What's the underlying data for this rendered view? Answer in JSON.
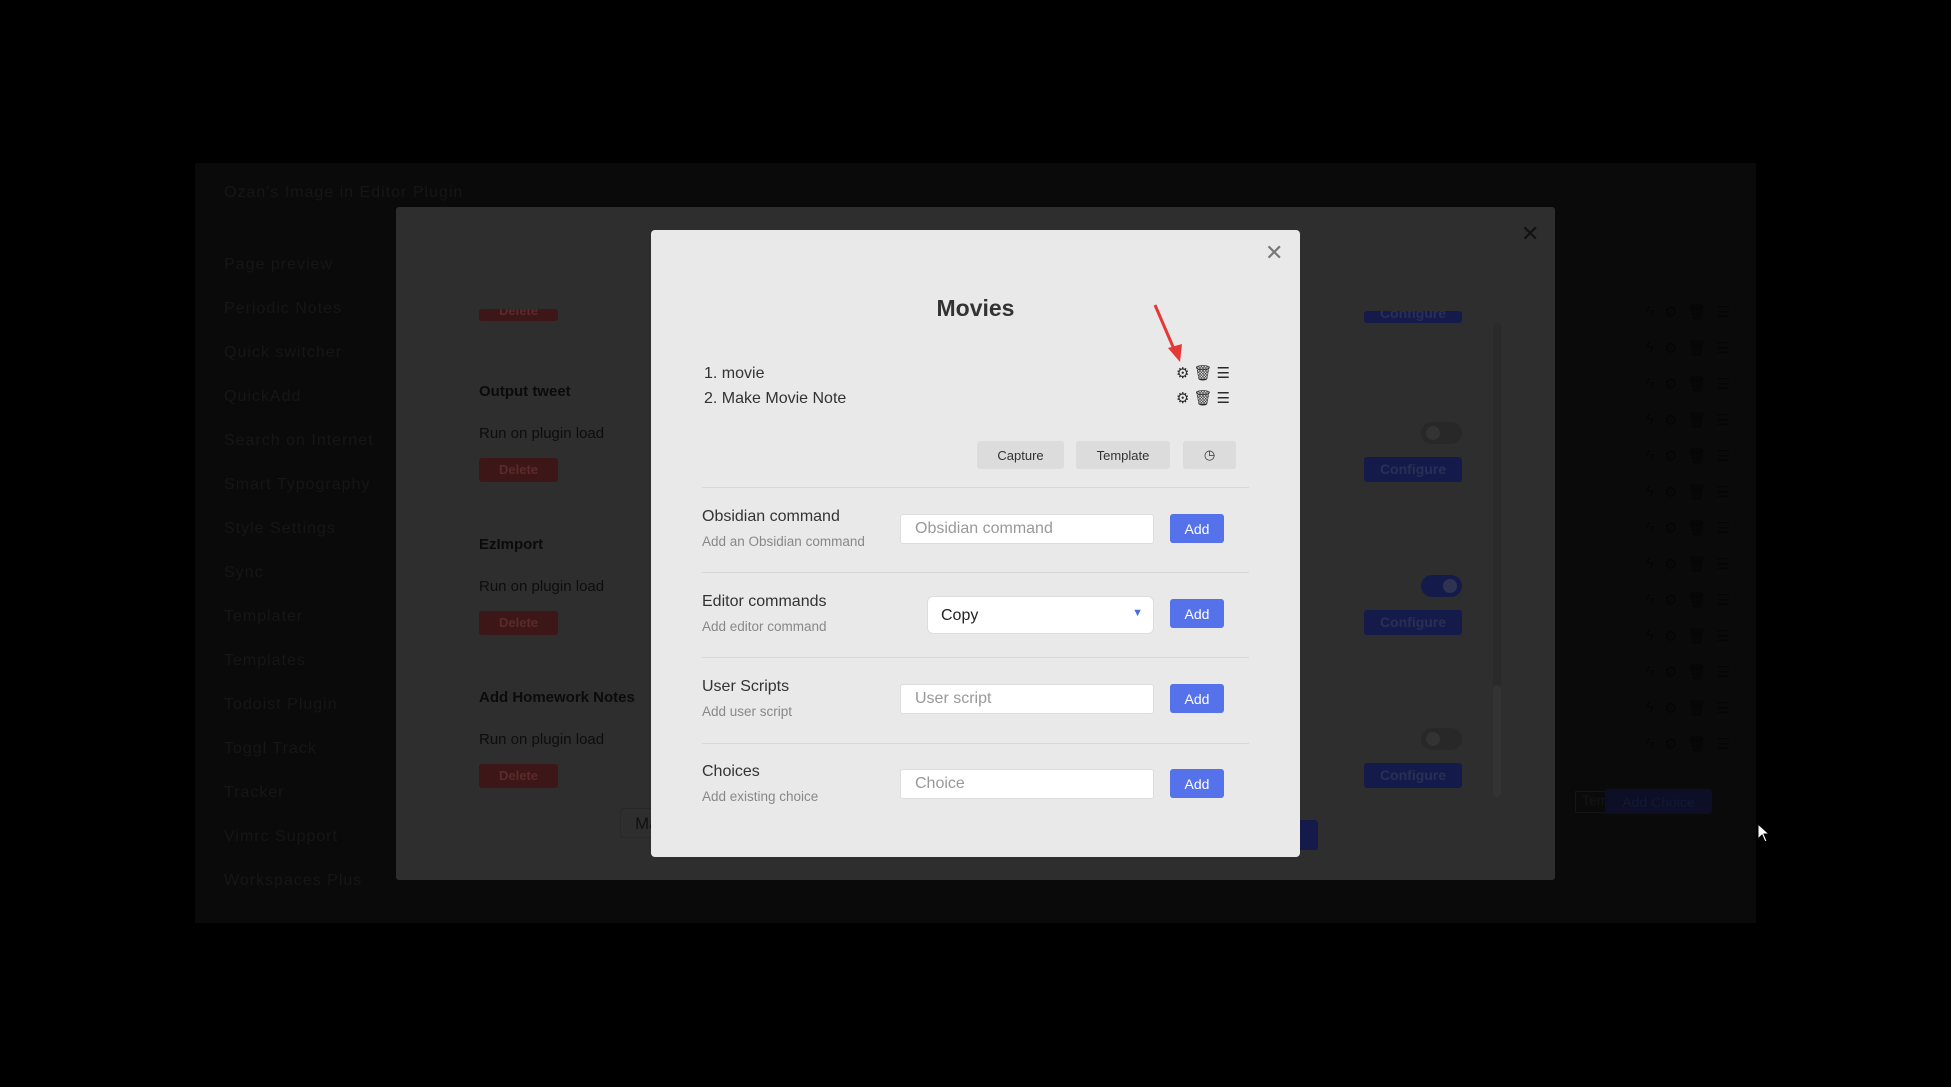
{
  "settings": {
    "sidebar": [
      "Ozan's Image in Editor Plugin",
      "Page preview",
      "Periodic Notes",
      "Quick switcher",
      "QuickAdd",
      "Search on Internet",
      "Smart Typography",
      "Style Settings",
      "Sync",
      "Templater",
      "Templates",
      "Todoist Plugin",
      "Toggl Track",
      "Tracker",
      "Vimrc Support",
      "Workspaces Plus"
    ],
    "choice_rows": 13,
    "type_select": "Template",
    "add_choice": "Add Choice"
  },
  "macro": {
    "top_delete": "Delete",
    "top_configure": "Configure",
    "commands": [
      {
        "name": "Output tweet",
        "run_label": "Run on plugin load",
        "run_on_load": false,
        "delete": "Delete",
        "configure": "Configure"
      },
      {
        "name": "EzImport",
        "run_label": "Run on plugin load",
        "run_on_load": true,
        "delete": "Delete",
        "configure": "Configure"
      },
      {
        "name": "Add Homework Notes",
        "run_label": "Run on plugin load",
        "run_on_load": false,
        "delete": "Delete",
        "configure": "Configure"
      }
    ],
    "bottom_input": "Ma"
  },
  "builder": {
    "title": "Movies",
    "commands": [
      "1. movie",
      "2. Make Movie Note"
    ],
    "buttons": {
      "capture": "Capture",
      "template": "Template"
    },
    "rows": [
      {
        "label": "Obsidian command",
        "desc": "Add an Obsidian command",
        "placeholder": "Obsidian command",
        "add": "Add"
      },
      {
        "label": "Editor commands",
        "desc": "Add editor command",
        "value": "Copy",
        "add": "Add"
      },
      {
        "label": "User Scripts",
        "desc": "Add user script",
        "placeholder": "User script",
        "add": "Add"
      },
      {
        "label": "Choices",
        "desc": "Add existing choice",
        "placeholder": "Choice",
        "add": "Add"
      }
    ],
    "accent": "#5572ea",
    "annotation_color": "#e53935"
  }
}
